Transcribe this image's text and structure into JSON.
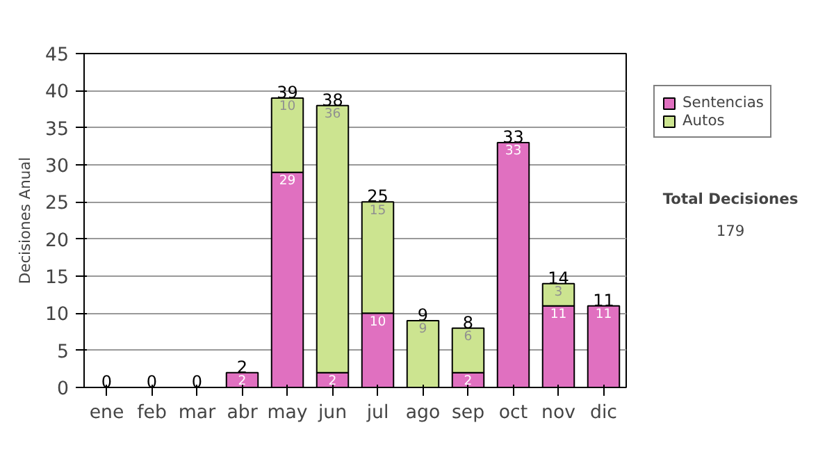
{
  "chart_data": {
    "type": "bar",
    "stacked": true,
    "ylabel": "Decisiones Anual",
    "categories": [
      "ene",
      "feb",
      "mar",
      "abr",
      "may",
      "jun",
      "jul",
      "ago",
      "sep",
      "oct",
      "nov",
      "dic"
    ],
    "series": [
      {
        "name": "Sentencias",
        "color": "#e070c0",
        "values": [
          0,
          0,
          0,
          2,
          29,
          2,
          10,
          0,
          2,
          33,
          11,
          11
        ],
        "value_labels": [
          null,
          null,
          null,
          "2",
          "29",
          "2",
          "10",
          null,
          "2",
          "33",
          "11",
          "11"
        ]
      },
      {
        "name": "Autos",
        "color": "#cce490",
        "values": [
          0,
          0,
          0,
          0,
          10,
          36,
          15,
          9,
          6,
          0,
          3,
          0
        ],
        "value_labels": [
          null,
          null,
          null,
          null,
          "10",
          "36",
          "15",
          "9",
          "6",
          null,
          "3",
          null
        ]
      }
    ],
    "totals": [
      "0",
      "0",
      "0",
      "2",
      "39",
      "38",
      "25",
      "9",
      "8",
      "33",
      "14",
      "11"
    ],
    "ylim": [
      0,
      45
    ],
    "yticks": [
      0,
      5,
      10,
      15,
      20,
      25,
      30,
      35,
      40,
      45
    ],
    "grid": "y",
    "legend": "right",
    "annotations": [
      "Total Decisiones",
      "179"
    ]
  }
}
